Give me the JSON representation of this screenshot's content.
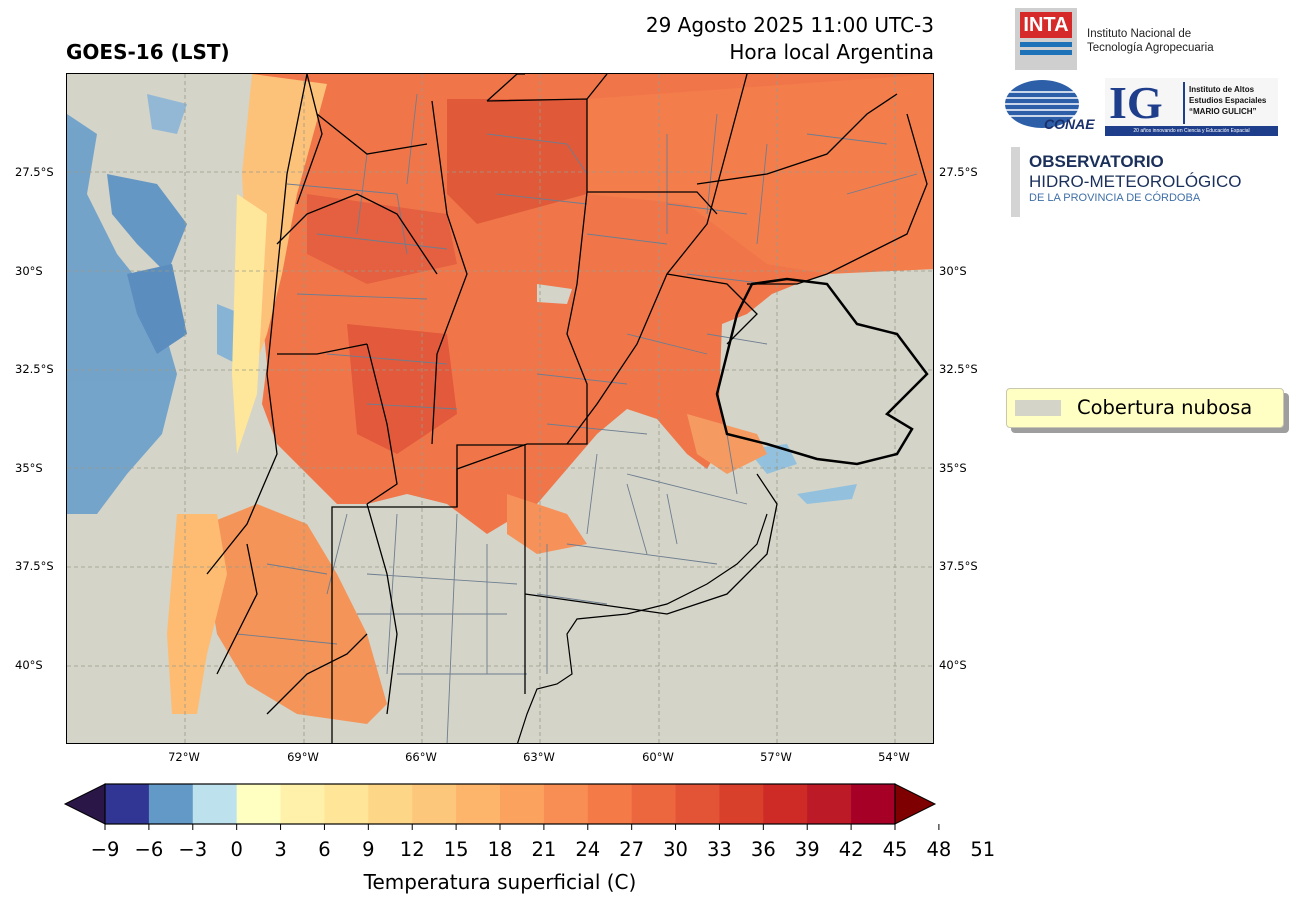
{
  "header": {
    "title_left": "GOES-16 (LST)",
    "datetime": "29 Agosto 2025 11:00 UTC-3",
    "local_time": "Hora local Argentina"
  },
  "map": {
    "lat_labels": [
      "27.5°S",
      "30°S",
      "32.5°S",
      "35°S",
      "37.5°S",
      "40°S"
    ],
    "lon_labels": [
      "72°W",
      "69°W",
      "66°W",
      "63°W",
      "60°W",
      "57°W",
      "54°W"
    ],
    "cloud_color": "#d4d4c8"
  },
  "legend": {
    "label": "Cobertura nubosa"
  },
  "colorbar": {
    "ticks": [
      "−9",
      "−6",
      "−3",
      "0",
      "3",
      "6",
      "9",
      "12",
      "15",
      "18",
      "21",
      "24",
      "27",
      "30",
      "33",
      "36",
      "39",
      "42",
      "45",
      "48",
      "51"
    ],
    "colors": [
      "#313695",
      "#6399c6",
      "#bde2ee",
      "#ffffc2",
      "#fff0aa",
      "#fee597",
      "#fed687",
      "#fdc77b",
      "#fdb46b",
      "#fba25f",
      "#f88e53",
      "#f47b48",
      "#ed673e",
      "#e35436",
      "#d9402c",
      "#ce2a26",
      "#bb1a26",
      "#a60027"
    ],
    "under_color": "#2b1747",
    "over_color": "#7f0000",
    "label": "Temperatura superficial (C)"
  },
  "logos": {
    "inta_mark": "INTA",
    "inta_line1": "Instituto Nacional de",
    "inta_line2": "Tecnología Agropecuaria",
    "conae": "CONAE",
    "ig_mark": "IG",
    "ig_line1": "Instituto de Altos",
    "ig_line2": "Estudios Espaciales",
    "ig_line3": "“MARIO GULICH”",
    "ig_footer": "20 años innovando en Ciencia y Educación Espacial",
    "obs_line1": "OBSERVATORIO",
    "obs_line2": "HIDRO-METEOROLÓGICO",
    "obs_line3": "DE LA PROVINCIA DE CÓRDOBA"
  }
}
